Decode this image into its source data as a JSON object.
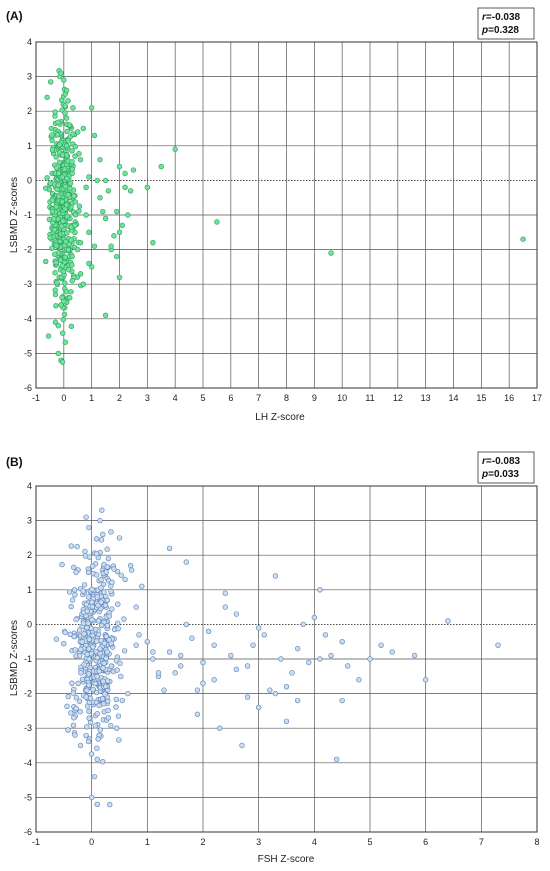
{
  "chart_data": [
    {
      "type": "scatter",
      "panel_label": "(A)",
      "xlabel": "LH Z-score",
      "ylabel": "LSBMD Z-scores",
      "xlim": [
        -1,
        17
      ],
      "ylim": [
        -6,
        4
      ],
      "xticks": [
        "-1",
        "0",
        "1",
        "2",
        "3",
        "4",
        "5",
        "6",
        "7",
        "8",
        "9",
        "10",
        "11",
        "12",
        "13",
        "14",
        "15",
        "16",
        "17"
      ],
      "yticks": [
        "4",
        "3",
        "2",
        "1",
        "0",
        "-1",
        "-2",
        "-3",
        "-4",
        "-5",
        "-6"
      ],
      "grid": true,
      "zero_line": true,
      "stats": {
        "r_label": "r",
        "r_value": "=-0.038",
        "p_label": "p",
        "p_value": "=0.328"
      },
      "marker_fill": "#6ee39a",
      "marker_stroke": "#2f9e5f",
      "cluster": {
        "x_center": -0.05,
        "x_spread": 0.22,
        "y_center": -0.7,
        "y_spread": 1.3,
        "count": 460
      },
      "x": [
        -0.6,
        -0.55,
        -0.45,
        -0.3,
        -0.2,
        -0.15,
        -0.1,
        -0.1,
        -0.05,
        0.0,
        0.05,
        0.1,
        0.15,
        -0.2,
        -0.1,
        0.0,
        0.1,
        0.2,
        0.3,
        0.4,
        0.5,
        0.6,
        0.7,
        0.8,
        0.9,
        1.0,
        1.1,
        0.8,
        0.9,
        1.0,
        0.5,
        0.6,
        0.7,
        0.3,
        0.4,
        1.2,
        1.3,
        1.4,
        1.5,
        1.6,
        1.7,
        1.8,
        1.9,
        2.0,
        2.1,
        2.2,
        2.3,
        2.4,
        1.5,
        1.7,
        2.0,
        2.2,
        1.3,
        1.9,
        2.5,
        3.0,
        3.2,
        3.5,
        4.0,
        5.5,
        9.6,
        16.5,
        1.5,
        2.0,
        0.6,
        0.9,
        1.1,
        0.3,
        -0.3,
        0.1
      ],
      "y": [
        2.4,
        -4.5,
        1.5,
        -4.1,
        -5.0,
        3.0,
        3.1,
        -5.2,
        -5.25,
        2.9,
        2.5,
        2.6,
        2.3,
        -4.2,
        -3.6,
        -3.5,
        1.8,
        1.6,
        0.2,
        0.7,
        1.4,
        0.6,
        1.5,
        -0.2,
        0.1,
        2.1,
        1.3,
        -1.0,
        -1.5,
        -2.5,
        -2.0,
        -1.8,
        -3.0,
        -2.9,
        -1.3,
        0.0,
        -0.5,
        -0.9,
        -1.1,
        -0.3,
        -2.0,
        -1.6,
        -2.2,
        0.4,
        -1.3,
        0.2,
        -1.0,
        -0.3,
        0.0,
        -1.9,
        -1.5,
        -0.2,
        0.6,
        -0.9,
        0.3,
        -0.2,
        -1.8,
        0.4,
        0.9,
        -1.2,
        -2.1,
        -1.7,
        -3.9,
        -2.8,
        -2.7,
        -2.4,
        -1.9,
        -2.2,
        -3.3,
        1.0
      ]
    },
    {
      "type": "scatter",
      "panel_label": "(B)",
      "xlabel": "FSH Z-score",
      "ylabel": "LSBMD Z-scores",
      "xlim": [
        -1,
        8
      ],
      "ylim": [
        -6,
        4
      ],
      "xticks": [
        "-1",
        "0",
        "1",
        "2",
        "3",
        "4",
        "5",
        "6",
        "7",
        "8"
      ],
      "yticks": [
        "4",
        "3",
        "2",
        "1",
        "0",
        "-1",
        "-2",
        "-3",
        "-4",
        "-5",
        "-6"
      ],
      "grid": true,
      "zero_line": true,
      "stats": {
        "r_label": "r",
        "r_value": "=-0.083",
        "p_label": "p",
        "p_value": "=0.033"
      },
      "marker_fill": "#c9dcf2",
      "marker_stroke": "#5b82b5",
      "cluster": {
        "x_center": 0.05,
        "x_spread": 0.22,
        "y_center": -0.6,
        "y_spread": 1.3,
        "count": 440
      },
      "x": [
        -0.3,
        -0.2,
        -0.1,
        0.0,
        0.1,
        0.15,
        0.05,
        -0.05,
        0.1,
        0.2,
        0.3,
        0.4,
        0.5,
        0.6,
        0.7,
        0.8,
        0.9,
        0.3,
        0.45,
        0.55,
        0.65,
        0.85,
        1.0,
        1.1,
        1.2,
        1.3,
        1.4,
        1.5,
        1.6,
        1.7,
        1.8,
        1.9,
        2.0,
        2.1,
        2.2,
        2.3,
        2.4,
        2.5,
        2.6,
        2.7,
        2.8,
        2.9,
        3.0,
        3.1,
        3.2,
        3.3,
        3.4,
        3.5,
        3.6,
        3.7,
        3.8,
        3.9,
        4.0,
        4.1,
        4.2,
        4.3,
        4.4,
        4.5,
        4.6,
        4.8,
        5.0,
        5.2,
        5.4,
        5.8,
        6.0,
        6.4,
        7.3,
        1.4,
        1.7,
        2.2,
        2.4,
        2.8,
        3.3,
        3.7,
        4.1,
        4.5,
        1.1,
        1.9,
        2.6,
        3.0,
        3.5,
        0.8,
        1.2,
        1.6,
        2.0
      ],
      "y": [
        -3.2,
        -3.5,
        3.1,
        -5.0,
        -5.2,
        3.0,
        -4.4,
        2.8,
        -3.9,
        2.6,
        1.9,
        1.6,
        2.5,
        1.3,
        1.7,
        0.5,
        1.1,
        -2.7,
        -3.0,
        -2.2,
        -2.0,
        -0.3,
        -0.5,
        -1.0,
        -1.5,
        -1.9,
        -0.8,
        -1.4,
        -1.2,
        0.0,
        -0.4,
        -2.6,
        -1.1,
        -0.2,
        -1.6,
        -3.0,
        0.9,
        -0.9,
        -1.3,
        -3.5,
        -2.1,
        -0.6,
        -2.4,
        -0.3,
        -1.9,
        1.4,
        -1.0,
        -2.8,
        -1.4,
        -0.7,
        0.0,
        -1.1,
        0.2,
        1.0,
        -0.3,
        -0.9,
        -3.9,
        -2.2,
        -1.2,
        -1.6,
        -1.0,
        -0.6,
        -0.8,
        -0.9,
        -1.6,
        0.1,
        -0.6,
        2.2,
        1.8,
        -0.6,
        0.5,
        -1.2,
        -2.0,
        -2.2,
        -1.0,
        -0.5,
        -0.8,
        -1.9,
        0.3,
        -0.1,
        -1.8,
        -0.6,
        -1.4,
        -0.9,
        -1.7
      ]
    }
  ]
}
